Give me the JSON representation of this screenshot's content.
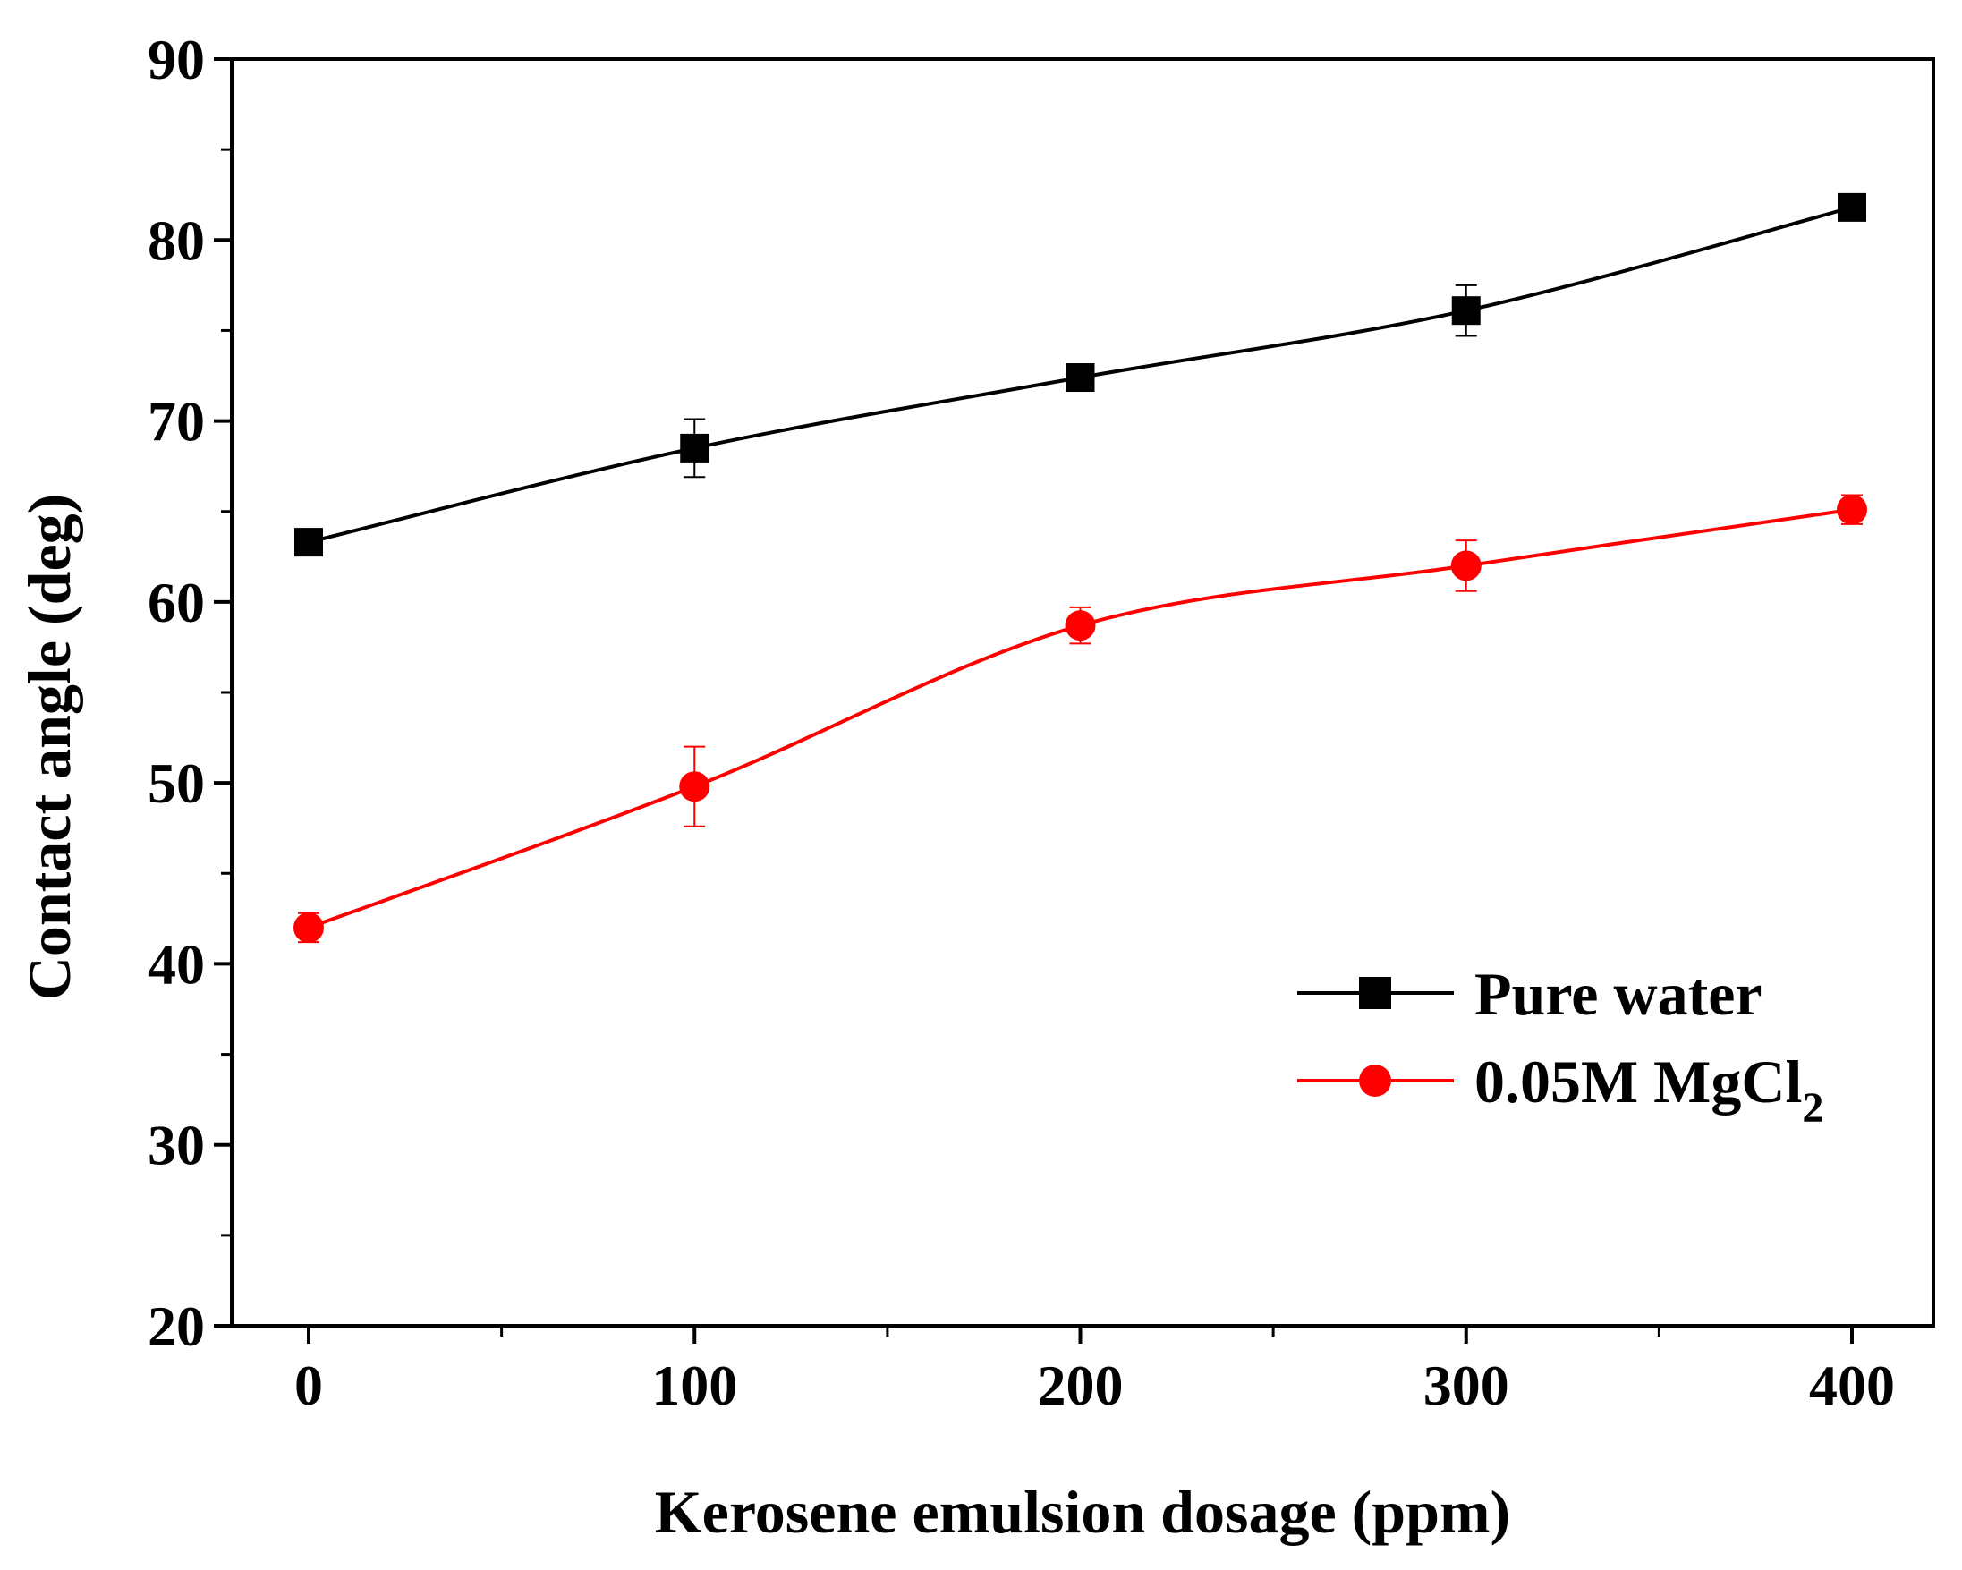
{
  "chart_data": {
    "type": "line",
    "title": "",
    "xlabel": "Kerosene emulsion dosage (ppm)",
    "ylabel": "Contact angle (deg)",
    "xlim": [
      -20,
      420
    ],
    "ylim": [
      20,
      90
    ],
    "xticks": [
      0,
      100,
      200,
      300,
      400
    ],
    "yticks": [
      20,
      30,
      40,
      50,
      60,
      70,
      80,
      90
    ],
    "x_minor_step": 50,
    "y_minor_step": 5,
    "grid": false,
    "legend_position": "bottom-right",
    "series": [
      {
        "name": "Pure water",
        "name_main": "Pure water",
        "name_sub": "",
        "marker": "square",
        "color": "#000000",
        "x": [
          0,
          100,
          200,
          300,
          400
        ],
        "values": [
          63.3,
          68.5,
          72.4,
          76.1,
          81.8
        ],
        "errors": [
          0.3,
          1.6,
          0.3,
          1.4,
          0.3
        ]
      },
      {
        "name": "0.05M MgCl2",
        "name_main": "0.05M MgCl",
        "name_sub": "2",
        "marker": "circle",
        "color": "#ff0000",
        "x": [
          0,
          100,
          200,
          300,
          400
        ],
        "values": [
          42.0,
          49.8,
          58.7,
          62.0,
          65.1
        ],
        "errors": [
          0.8,
          2.2,
          1.0,
          1.4,
          0.8
        ]
      }
    ]
  }
}
